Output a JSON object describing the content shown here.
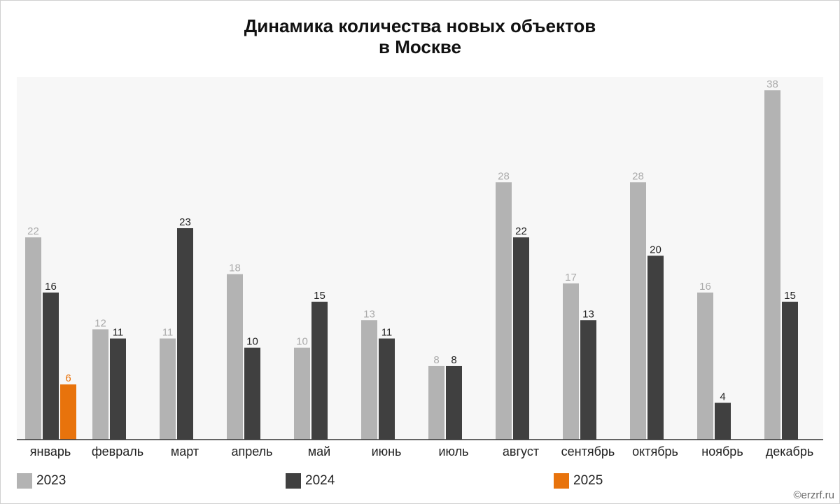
{
  "title_line1": "Динамика количества новых объектов",
  "title_line2": "в Москве",
  "footer": "©erzrf.ru",
  "colors": {
    "2023": "#b3b3b3",
    "2024": "#404040",
    "2025": "#e8730c",
    "plot_bg": "#f7f7f7"
  },
  "chart_data": {
    "type": "bar",
    "title": "Динамика количества новых объектов в Москве",
    "categories": [
      "январь",
      "февраль",
      "март",
      "апрель",
      "май",
      "июнь",
      "июль",
      "август",
      "сентябрь",
      "октябрь",
      "ноябрь",
      "декабрь"
    ],
    "series": [
      {
        "name": "2023",
        "values": [
          22,
          12,
          11,
          18,
          10,
          13,
          8,
          28,
          17,
          28,
          16,
          38
        ]
      },
      {
        "name": "2024",
        "values": [
          16,
          11,
          23,
          10,
          15,
          11,
          8,
          22,
          13,
          20,
          4,
          15
        ]
      },
      {
        "name": "2025",
        "values": [
          6,
          null,
          null,
          null,
          null,
          null,
          null,
          null,
          null,
          null,
          null,
          null
        ]
      }
    ],
    "ylim": [
      0,
      38
    ],
    "grid": false,
    "legend_position": "bottom",
    "data_labels": true
  }
}
